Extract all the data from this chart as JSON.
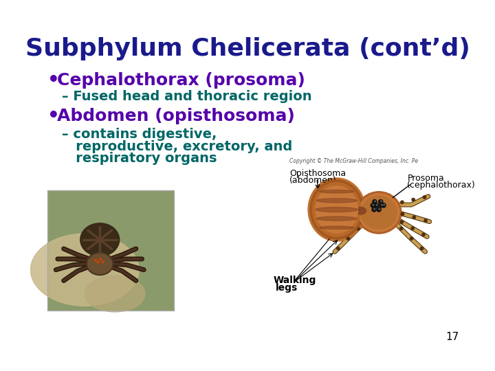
{
  "title": "Subphylum Chelicerata (cont’d)",
  "title_color": "#1a1a8c",
  "title_fontsize": 26,
  "bg_color": "#ffffff",
  "bullet1_text": "Cephalothorax (prosoma)",
  "bullet1_color": "#5500aa",
  "bullet1_fontsize": 18,
  "sub1_text": "– Fused head and thoracic region",
  "sub1_color": "#006666",
  "sub1_fontsize": 14,
  "bullet2_text": "Abdomen (opisthosoma)",
  "bullet2_color": "#5500aa",
  "bullet2_fontsize": 18,
  "sub2a_text": "– contains digestive,",
  "sub2b_text": "   reproductive, excretory, and",
  "sub2c_text": "   respiratory organs",
  "sub2_color": "#006666",
  "sub2_fontsize": 14,
  "bullet_color": "#5500aa",
  "copyright_text": "Copyright © The McGraw-Hill Companies, Inc. Pe",
  "opisthosoma_line1": "Opisthosoma",
  "opisthosoma_line2": "(abdomen)",
  "prosoma_line1": "Prosoma",
  "prosoma_line2": "(cephalothorax)",
  "walking_line1": "Walking",
  "walking_line2": "legs",
  "label_fontsize": 9,
  "page_number": "17",
  "page_fontsize": 11
}
